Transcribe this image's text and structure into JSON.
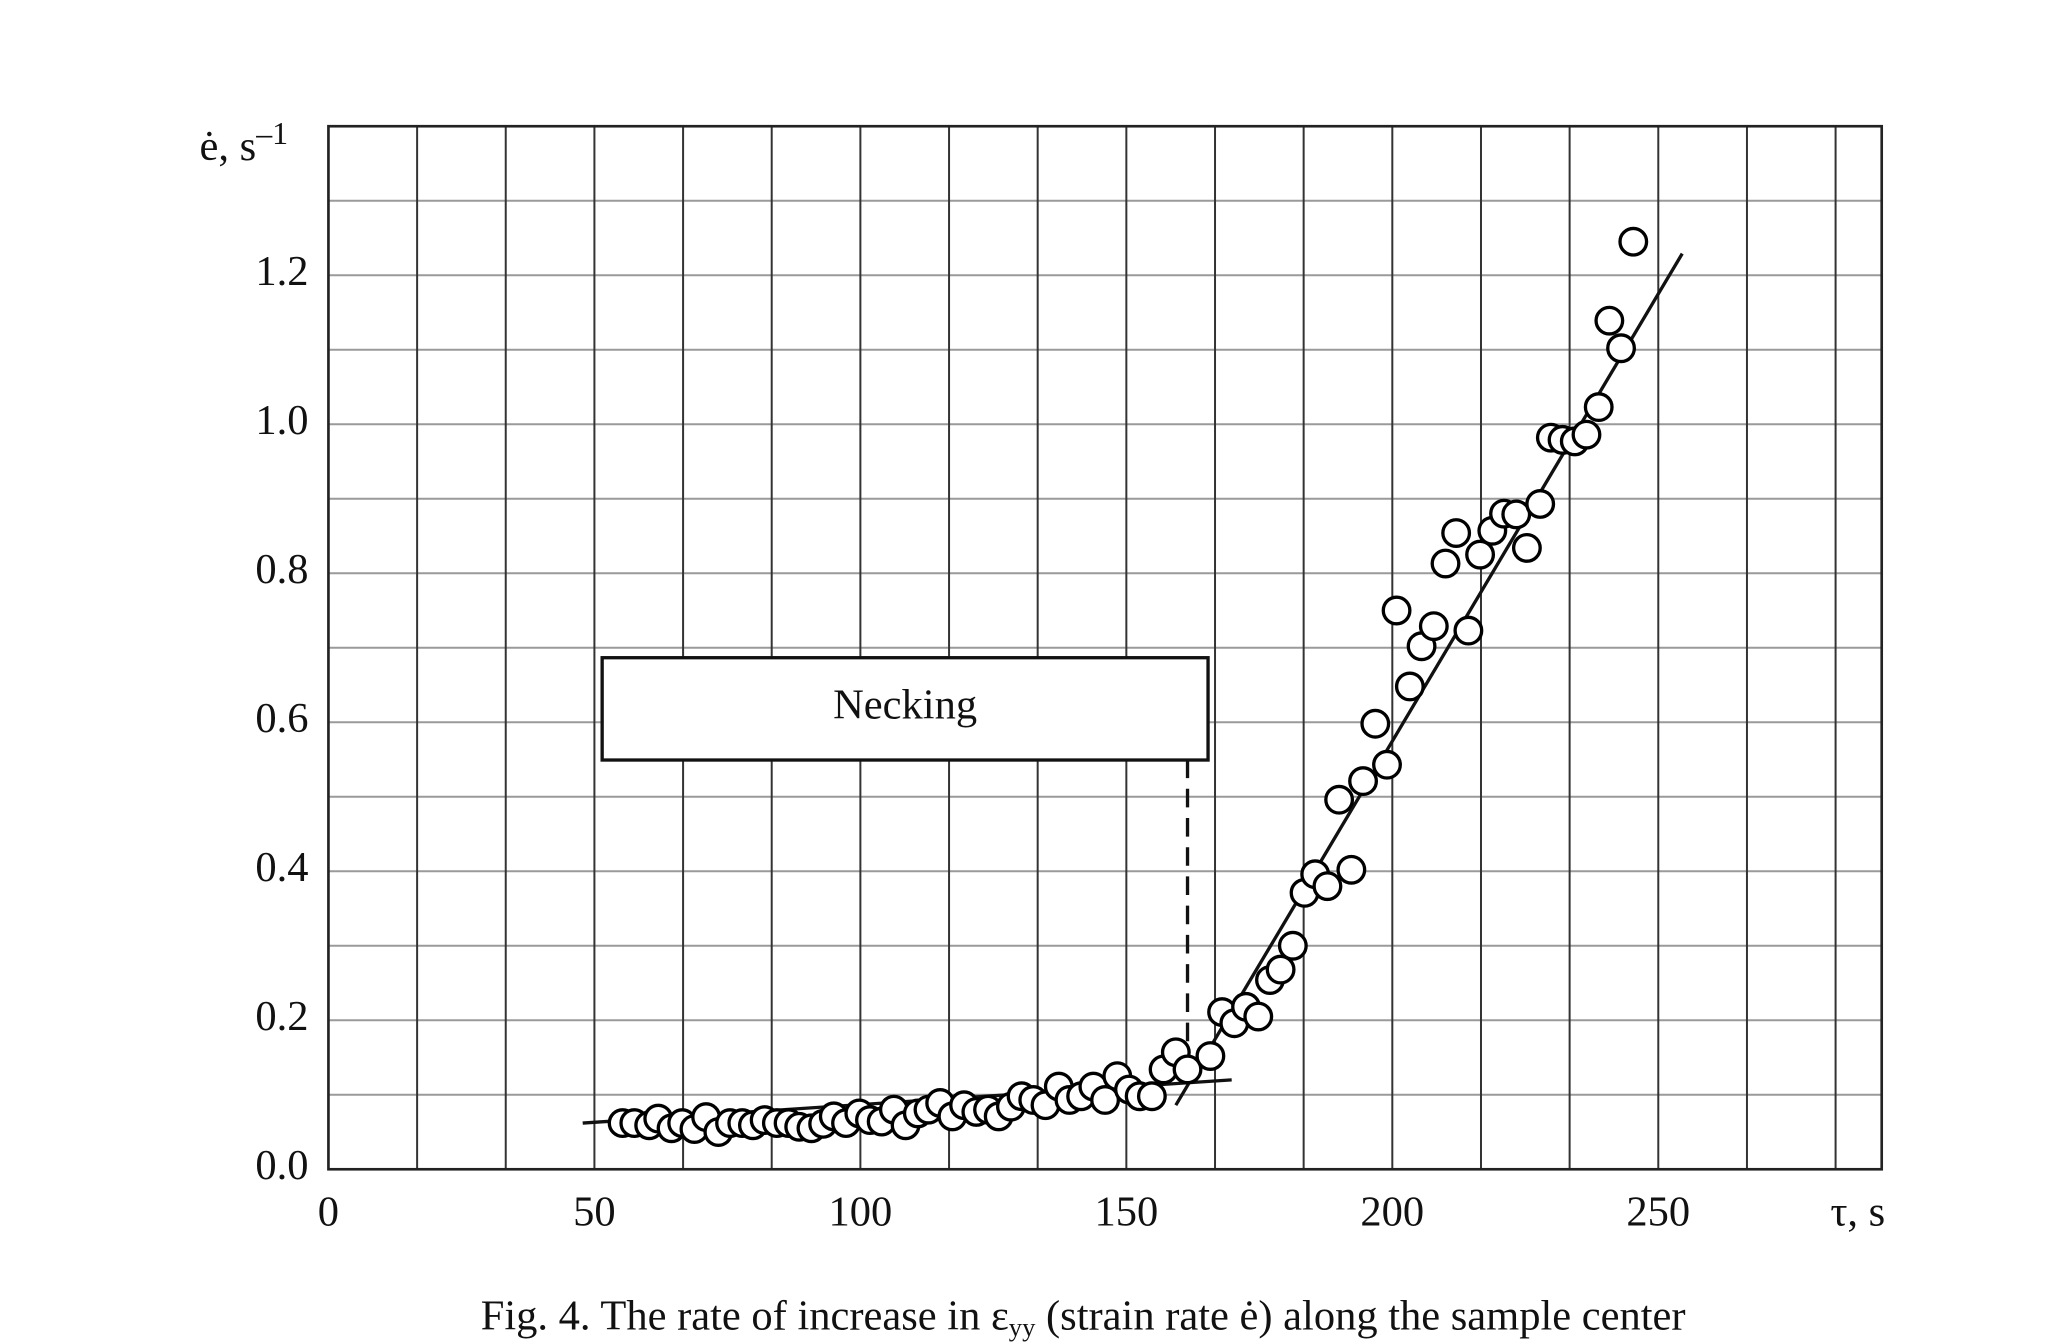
{
  "chart_data": {
    "type": "scatter",
    "caption": {
      "before": "Fig. 4. The rate of increase in ε",
      "sub": "yy",
      "after": " (strain rate ė) along the sample center"
    },
    "y_label": {
      "text": "ė, s",
      "sup": "–1"
    },
    "x_label": "τ, s",
    "annotation": "Necking",
    "xlim": [
      0,
      292
    ],
    "ylim": [
      0,
      1.4
    ],
    "xticks": [
      0,
      50,
      100,
      150,
      200,
      250
    ],
    "yticks": [
      {
        "value": 0,
        "label": "0.0"
      },
      0.2,
      0.4,
      0.6,
      0.8,
      {
        "value": 1,
        "label": "1.0"
      },
      1.2
    ],
    "xgrid": [
      16.67,
      33.33,
      50,
      66.67,
      83.33,
      100,
      116.67,
      133.33,
      150,
      166.67,
      183.33,
      200,
      216.67,
      233.33,
      250,
      266.67,
      283.33
    ],
    "ygrid": [
      0.1,
      0.2,
      0.3,
      0.4,
      0.5,
      0.6,
      0.7,
      0.8,
      0.9,
      1.0,
      1.1,
      1.2,
      1.3
    ],
    "marker_color": "#000000",
    "x": [
      55.3,
      57.5,
      60.3,
      62,
      64.5,
      66.5,
      68.8,
      71,
      73.3,
      75.5,
      77.8,
      79.8,
      82,
      84.3,
      86.5,
      88.5,
      90.8,
      93,
      95,
      97.3,
      99.8,
      101.8,
      104,
      106.3,
      108.5,
      110.8,
      112.8,
      115,
      117.3,
      119.5,
      121.8,
      124,
      126,
      128.3,
      130.3,
      132.5,
      134.8,
      137.3,
      139.3,
      141.5,
      143.8,
      146,
      148.3,
      150.5,
      152.5,
      154.8,
      157,
      159.3,
      161.5,
      165.8,
      168,
      170.3,
      172.5,
      174.8,
      177,
      179,
      181.3,
      183.5,
      185.5,
      187.8,
      190,
      192.3,
      194.5,
      196.8,
      199,
      200.8,
      203.3,
      205.5,
      207.8,
      210,
      212,
      214.3,
      216.5,
      218.8,
      221,
      223.3,
      225.3,
      227.8,
      229.8,
      232,
      234.3,
      236.5,
      238.8,
      240.8,
      243,
      245.3
    ],
    "values": [
      0.062,
      0.062,
      0.059,
      0.068,
      0.055,
      0.062,
      0.054,
      0.07,
      0.05,
      0.062,
      0.062,
      0.059,
      0.066,
      0.062,
      0.062,
      0.057,
      0.055,
      0.061,
      0.071,
      0.062,
      0.075,
      0.066,
      0.064,
      0.08,
      0.059,
      0.075,
      0.08,
      0.089,
      0.071,
      0.086,
      0.077,
      0.08,
      0.071,
      0.084,
      0.098,
      0.093,
      0.086,
      0.111,
      0.093,
      0.098,
      0.111,
      0.093,
      0.125,
      0.107,
      0.098,
      0.098,
      0.134,
      0.157,
      0.134,
      0.152,
      0.211,
      0.196,
      0.218,
      0.205,
      0.254,
      0.268,
      0.3,
      0.371,
      0.396,
      0.38,
      0.496,
      0.402,
      0.521,
      0.598,
      0.543,
      0.75,
      0.648,
      0.702,
      0.729,
      0.813,
      0.854,
      0.723,
      0.825,
      0.857,
      0.88,
      0.879,
      0.834,
      0.893,
      0.982,
      0.979,
      0.977,
      0.986,
      1.023,
      1.139,
      1.102,
      1.245
    ],
    "lines": [
      {
        "x": [
          47.8,
          169.8
        ],
        "values": [
          0.062,
          0.12
        ]
      },
      {
        "x": [
          159.3,
          254.5
        ],
        "values": [
          0.086,
          1.229
        ]
      }
    ],
    "marker_line": {
      "x": [
        161.5,
        161.5
      ],
      "values": [
        0.55,
        0.13
      ]
    }
  }
}
